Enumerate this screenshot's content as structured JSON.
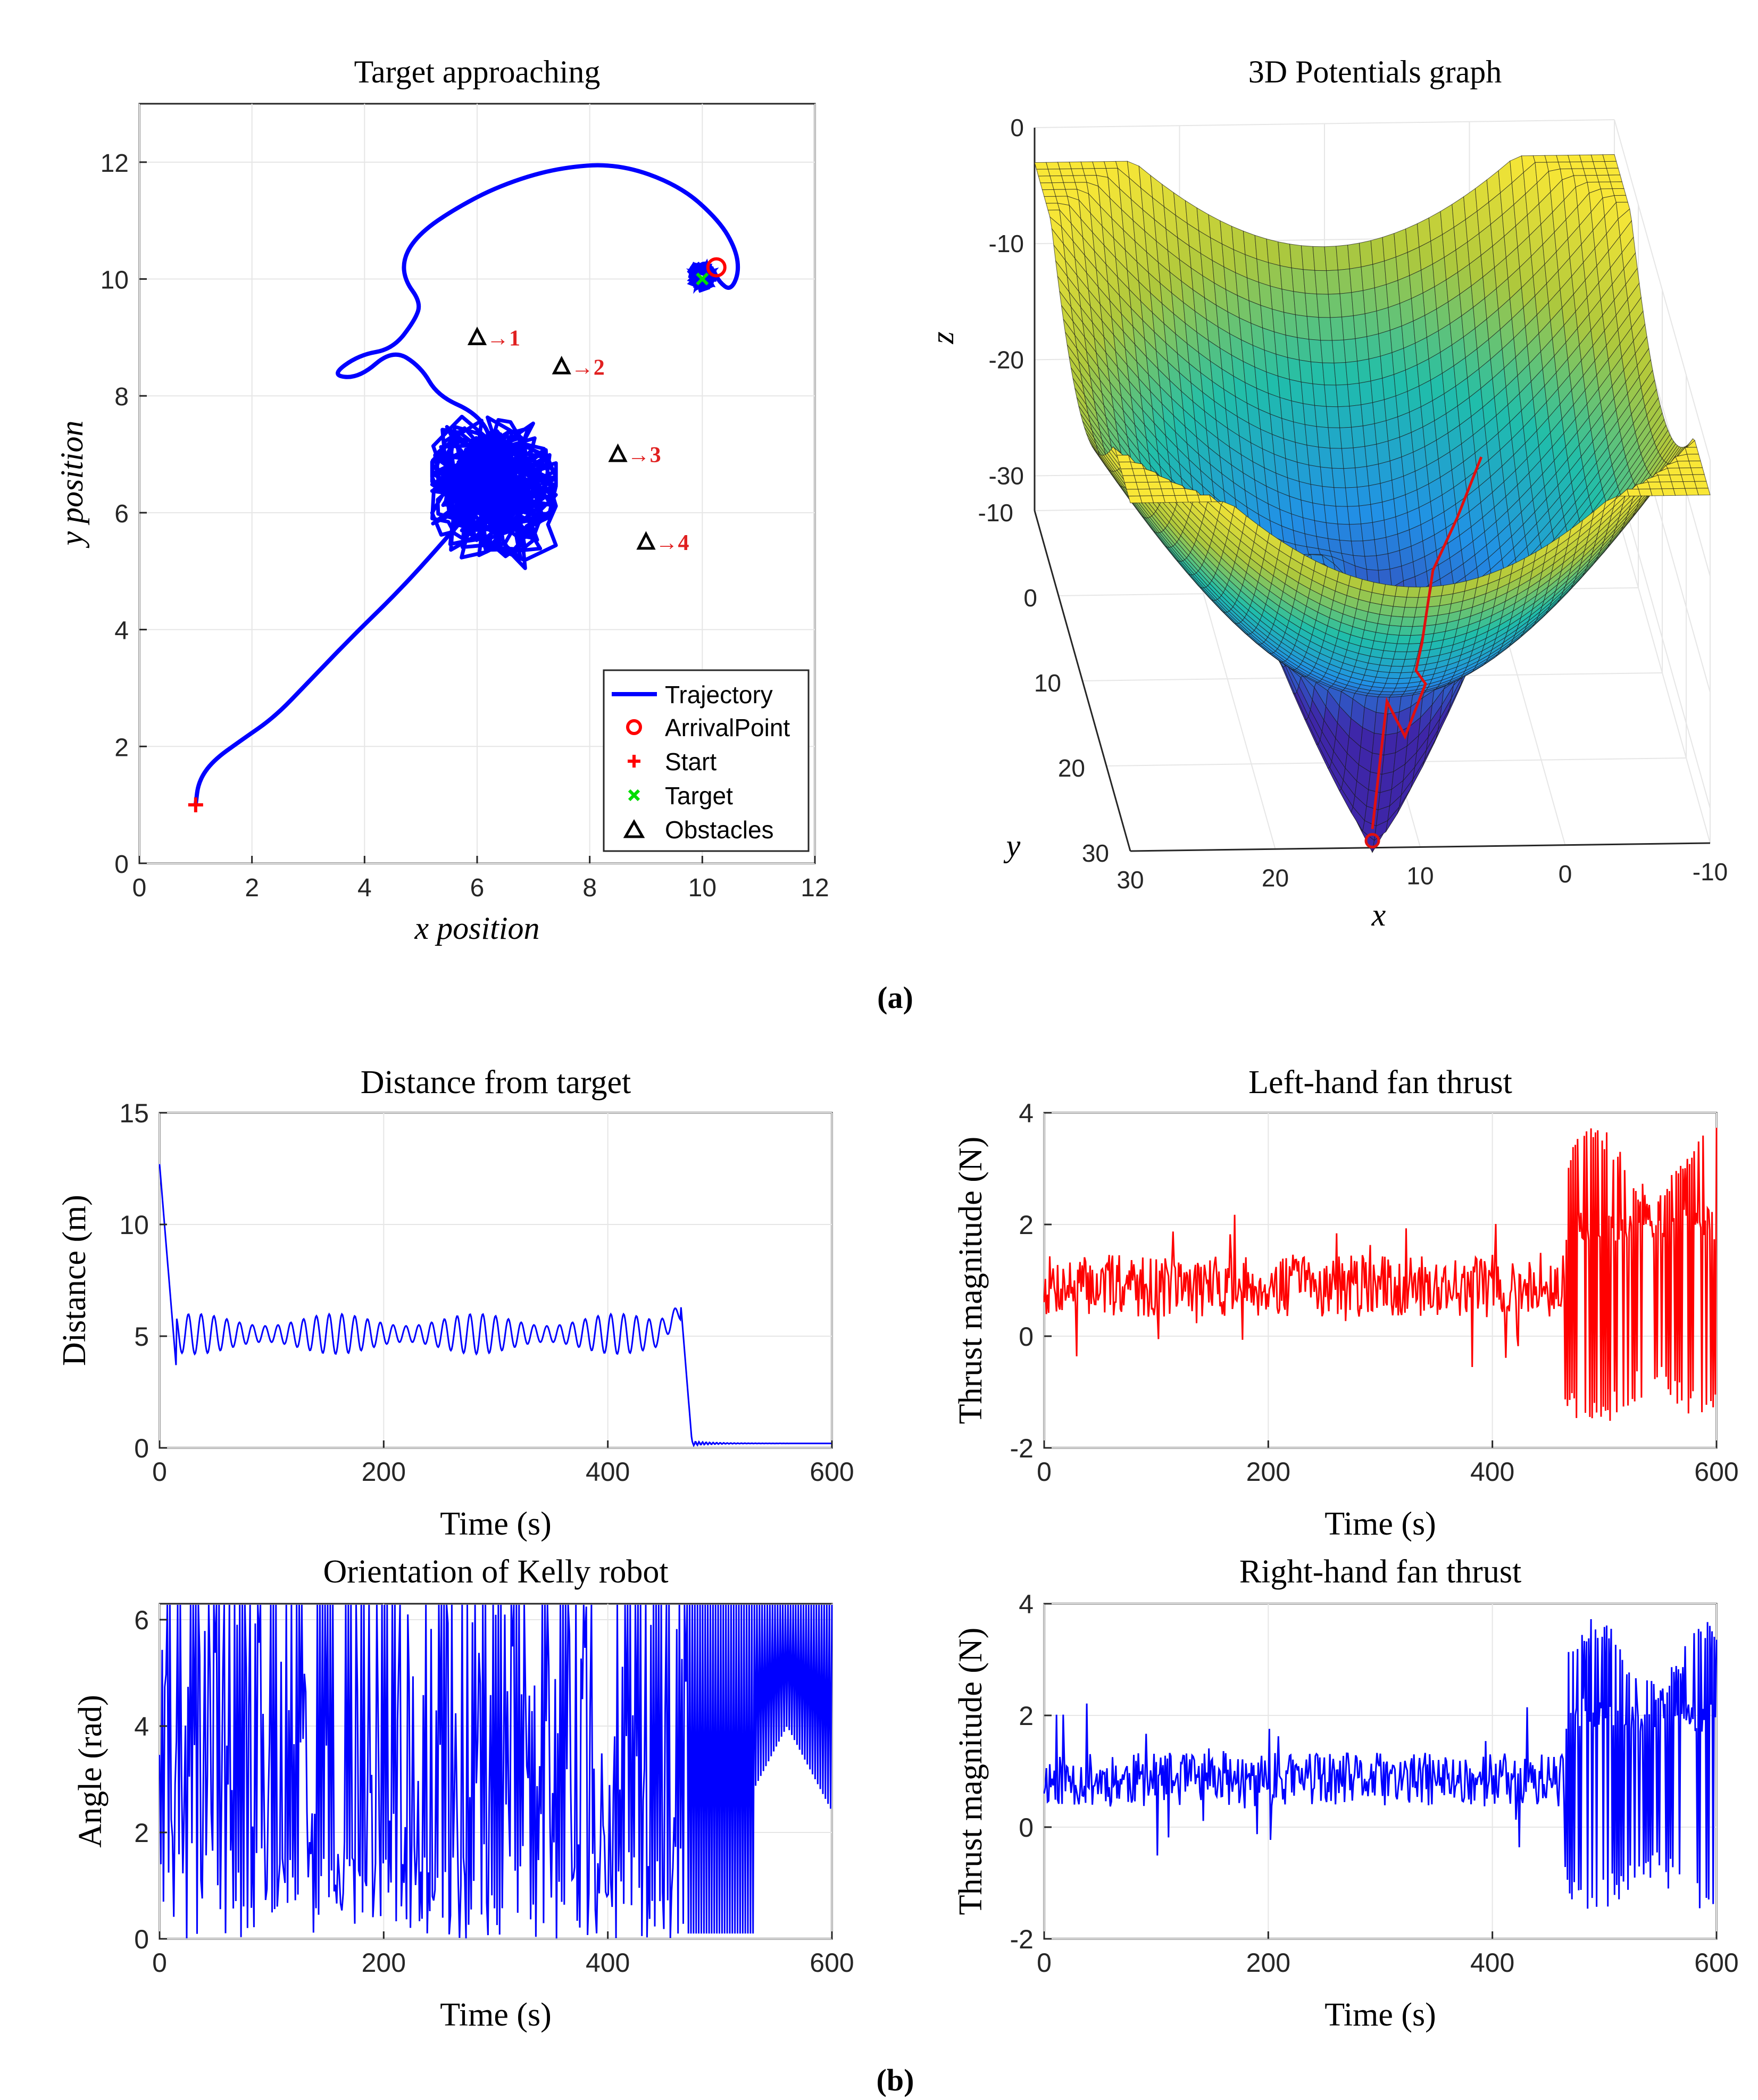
{
  "panel_labels": {
    "a": "(a)",
    "b": "(b)"
  },
  "chart_data": [
    {
      "id": "target",
      "type": "scatter",
      "title": "Target approaching",
      "xlabel": "x position",
      "ylabel": "y position",
      "xlim": [
        0,
        12
      ],
      "ylim": [
        0,
        13
      ],
      "xticks": [
        0,
        2,
        4,
        6,
        8,
        10,
        12
      ],
      "yticks": [
        0,
        2,
        4,
        6,
        8,
        10,
        12
      ],
      "trajectory": {
        "name": "Trajectory",
        "path": [
          [
            1,
            1
          ],
          [
            1.05,
            1.4
          ],
          [
            1.3,
            1.75
          ],
          [
            1.8,
            2.1
          ],
          [
            2.4,
            2.5
          ],
          [
            3.0,
            3.1
          ],
          [
            3.8,
            3.9
          ],
          [
            4.6,
            4.65
          ],
          [
            5.4,
            5.5
          ],
          [
            6.1,
            6.3
          ],
          [
            6.3,
            7.2
          ],
          [
            6.0,
            7.7
          ],
          [
            5.3,
            8.0
          ],
          [
            5.0,
            8.5
          ],
          [
            4.5,
            8.8
          ],
          [
            3.9,
            8.3
          ],
          [
            3.4,
            8.35
          ],
          [
            3.9,
            8.7
          ],
          [
            4.5,
            8.8
          ],
          [
            4.9,
            9.3
          ],
          [
            5.0,
            9.6
          ],
          [
            4.7,
            10.0
          ],
          [
            4.7,
            10.4
          ],
          [
            5.0,
            10.8
          ],
          [
            5.6,
            11.2
          ],
          [
            6.4,
            11.6
          ],
          [
            7.4,
            11.9
          ],
          [
            8.5,
            11.98
          ],
          [
            9.6,
            11.6
          ],
          [
            10.3,
            11.0
          ],
          [
            10.6,
            10.5
          ],
          [
            10.65,
            10.1
          ],
          [
            10.5,
            9.8
          ],
          [
            10.3,
            9.95
          ],
          [
            10.2,
            10.15
          ],
          [
            10.05,
            10.3
          ],
          [
            9.85,
            10.15
          ],
          [
            9.95,
            9.95
          ],
          [
            10.1,
            10.05
          ],
          [
            10.2,
            10.18
          ]
        ],
        "cluster_center": [
          6.3,
          6.4
        ],
        "cluster_radius": [
          1.0,
          1.1
        ],
        "color": "#0000ff"
      },
      "markers": [
        {
          "name": "ArrivalPoint",
          "x": 10.25,
          "y": 10.2,
          "symbol": "o",
          "color": "#ff0000"
        },
        {
          "name": "Start",
          "x": 1,
          "y": 1,
          "symbol": "+",
          "color": "#ff0000"
        },
        {
          "name": "Target",
          "x": 10,
          "y": 10,
          "symbol": "x",
          "color": "#00dd00"
        }
      ],
      "obstacles": [
        {
          "x": 6,
          "y": 9,
          "label": "→1"
        },
        {
          "x": 7.5,
          "y": 8.5,
          "label": "→2"
        },
        {
          "x": 8.5,
          "y": 7,
          "label": "→3"
        },
        {
          "x": 9,
          "y": 5.5,
          "label": "→4"
        }
      ],
      "legend": [
        "Trajectory",
        "ArrivalPoint",
        "Start",
        "Target",
        "Obstacles"
      ],
      "legend_position": "bottom-right"
    },
    {
      "id": "potential",
      "type": "surface",
      "title": "3D Potentials graph",
      "xlabel": "x",
      "ylabel": "y",
      "zlabel": "z",
      "xticks": [
        30,
        20,
        10,
        0,
        -10
      ],
      "yticks": [
        -10,
        0,
        10,
        20,
        30
      ],
      "zticks": [
        0,
        -10,
        -20,
        -30
      ],
      "grid_n": 50
    },
    {
      "id": "distance",
      "type": "line",
      "title": "Distance from target",
      "xlabel": "Time (s)",
      "ylabel": "Distance (m)",
      "xlim": [
        0,
        600
      ],
      "ylim": [
        0,
        15
      ],
      "xticks": [
        0,
        200,
        400,
        600
      ],
      "yticks": [
        0,
        5,
        10,
        15
      ],
      "color": "#0000ff",
      "signal": {
        "kind": "distance",
        "start": 12.7,
        "mid_mean": 5.1,
        "mid_amp": 0.9,
        "switch_t": 465,
        "end_value": 0.2
      }
    },
    {
      "id": "left_thrust",
      "type": "line",
      "title": "Left-hand fan thrust",
      "xlabel": "Time (s)",
      "ylabel": "Thrust magnitude (N)",
      "xlim": [
        0,
        600
      ],
      "ylim": [
        -2,
        4
      ],
      "xticks": [
        0,
        200,
        400,
        600
      ],
      "yticks": [
        -2,
        0,
        2,
        4
      ],
      "color": "#ff0000",
      "signal": {
        "kind": "thrust",
        "mean": 0.9,
        "noise": 0.35,
        "switch_t": 465,
        "high": 3.3,
        "low": -1.6,
        "seed": 7
      }
    },
    {
      "id": "orientation",
      "type": "line",
      "title": "Orientation of Kelly robot",
      "xlabel": "Time (s)",
      "ylabel": "Angle (rad)",
      "xlim": [
        0,
        600
      ],
      "ylim": [
        0,
        6.3
      ],
      "xticks": [
        0,
        200,
        400,
        600
      ],
      "yticks": [
        0,
        2,
        4,
        6
      ],
      "color": "#0000ff",
      "signal": {
        "kind": "angle",
        "switch_t": 470,
        "seed": 3
      }
    },
    {
      "id": "right_thrust",
      "type": "line",
      "title": "Right-hand fan thrust",
      "xlabel": "Time (s)",
      "ylabel": "Thrust magnitude (N)",
      "xlim": [
        0,
        600
      ],
      "ylim": [
        -2,
        4
      ],
      "xticks": [
        0,
        200,
        400,
        600
      ],
      "yticks": [
        -2,
        0,
        2,
        4
      ],
      "color": "#0000ff",
      "signal": {
        "kind": "thrust",
        "mean": 0.85,
        "noise": 0.3,
        "switch_t": 465,
        "high": 3.3,
        "low": -1.5,
        "seed": 11
      }
    }
  ]
}
